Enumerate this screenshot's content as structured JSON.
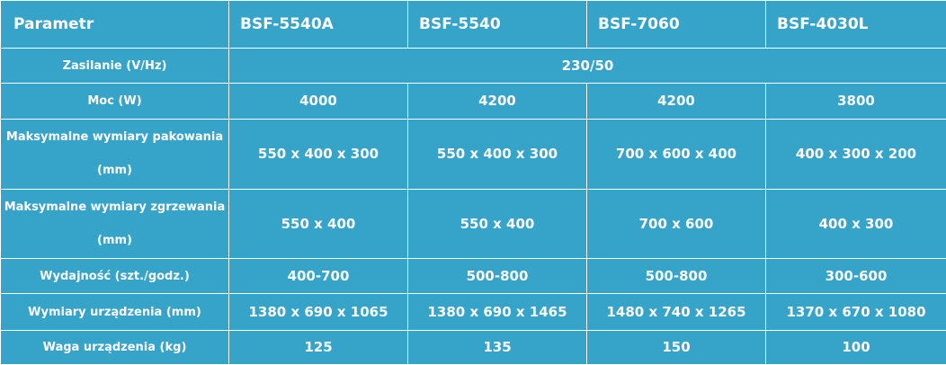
{
  "header": [
    "Parametr",
    "BSF-5540A",
    "BSF-5540",
    "BSF-7060",
    "BSF-4030L"
  ],
  "rows": [
    {
      "label": "Zasilanie (V/Hz)",
      "merged": "230/50"
    },
    {
      "label": "Moc (W)",
      "values": [
        "4000",
        "4200",
        "4200",
        "3800"
      ]
    },
    {
      "label": "Maksymalne wymiary pakowania (mm)",
      "values": [
        "550 x 400 x 300",
        "550 x 400 x 300",
        "700 x 600 x 400",
        "400 x 300 x 200"
      ]
    },
    {
      "label": "Maksymalne wymiary zgrzewania (mm)",
      "values": [
        "550 x 400",
        "550 x 400",
        "700 x 600",
        "400 x 300"
      ]
    },
    {
      "label": "Wydajność (szt./godz.)",
      "values": [
        "400-700",
        "500-800",
        "500-800",
        "300-600"
      ]
    },
    {
      "label": "Wymiary urządzenia (mm)",
      "values": [
        "1380 x 690 x 1065",
        "1380 x 690 x 1465",
        "1480 x 740 x 1265",
        "1370 x 670 x 1080"
      ]
    },
    {
      "label": "Waga urządzenia (kg)",
      "values": [
        "125",
        "135",
        "150",
        "100"
      ]
    }
  ],
  "colors": {
    "cell_bg": "#36a4c9",
    "border": "#ffffff",
    "text": "#ffffff"
  }
}
